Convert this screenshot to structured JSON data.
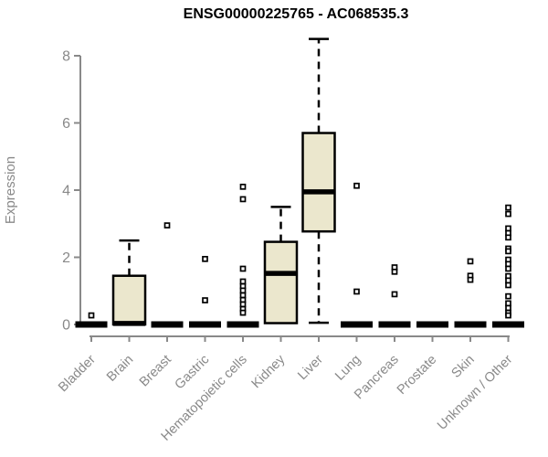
{
  "chart_data": {
    "type": "boxplot",
    "title": "ENSG00000225765 - AC068535.3",
    "ylabel": "Expression",
    "xlabel": "",
    "ylim": [
      0,
      8.6
    ],
    "yticks": [
      0,
      2,
      4,
      6,
      8
    ],
    "grid": false,
    "legend": "none",
    "categories": [
      "Bladder",
      "Brain",
      "Breast",
      "Gastric",
      "Hematopoietic cells",
      "Kidney",
      "Liver",
      "Lung",
      "Pancreas",
      "Prostate",
      "Skin",
      "Unknown / Other"
    ],
    "boxes": [
      {
        "label": "Bladder",
        "q1": 0,
        "median": 0,
        "q3": 0,
        "whisker_low": 0,
        "whisker_high": 0,
        "outliers": [
          0.27
        ]
      },
      {
        "label": "Brain",
        "q1": 0,
        "median": 0.03,
        "q3": 1.45,
        "whisker_low": 0,
        "whisker_high": 2.5,
        "outliers": []
      },
      {
        "label": "Breast",
        "q1": 0,
        "median": 0,
        "q3": 0,
        "whisker_low": 0,
        "whisker_high": 0,
        "outliers": [
          2.95
        ]
      },
      {
        "label": "Gastric",
        "q1": 0,
        "median": 0,
        "q3": 0,
        "whisker_low": 0,
        "whisker_high": 0,
        "outliers": [
          1.95,
          0.72
        ]
      },
      {
        "label": "Hematopoietic cells",
        "q1": 0,
        "median": 0,
        "q3": 0,
        "whisker_low": 0,
        "whisker_high": 0,
        "outliers": [
          4.1,
          3.73,
          1.66,
          1.28,
          1.14,
          1.01,
          0.87,
          0.73,
          0.6,
          0.46,
          0.35
        ]
      },
      {
        "label": "Kidney",
        "q1": 0.04,
        "median": 1.52,
        "q3": 2.46,
        "whisker_low": 0.04,
        "whisker_high": 3.5,
        "outliers": []
      },
      {
        "label": "Liver",
        "q1": 2.77,
        "median": 3.95,
        "q3": 5.7,
        "whisker_low": 0.05,
        "whisker_high": 8.5,
        "outliers": []
      },
      {
        "label": "Lung",
        "q1": 0,
        "median": 0,
        "q3": 0,
        "whisker_low": 0,
        "whisker_high": 0,
        "outliers": [
          4.13,
          0.98
        ]
      },
      {
        "label": "Pancreas",
        "q1": 0,
        "median": 0,
        "q3": 0,
        "whisker_low": 0,
        "whisker_high": 0,
        "outliers": [
          1.7,
          1.57,
          0.9
        ]
      },
      {
        "label": "Prostate",
        "q1": 0,
        "median": 0,
        "q3": 0,
        "whisker_low": 0,
        "whisker_high": 0,
        "outliers": []
      },
      {
        "label": "Skin",
        "q1": 0,
        "median": 0,
        "q3": 0,
        "whisker_low": 0,
        "whisker_high": 0,
        "outliers": [
          1.88,
          1.45,
          1.33
        ]
      },
      {
        "label": "Unknown / Other",
        "q1": 0,
        "median": 0,
        "q3": 0,
        "whisker_low": 0,
        "whisker_high": 0,
        "outliers": [
          3.48,
          3.29,
          2.86,
          2.72,
          2.59,
          2.26,
          2.18,
          1.93,
          1.8,
          1.66,
          1.44,
          1.31,
          1.17,
          0.84,
          0.63,
          0.49,
          0.35,
          0.27
        ]
      }
    ],
    "colors": {
      "box_fill": "#ebe7cd",
      "box_stroke": "#000000",
      "median": "#000000",
      "whisker": "#000000",
      "outlier_fill": "#ffffff",
      "outlier_stroke": "#000000",
      "axis": "#898989",
      "title": "#000000",
      "background": "#ffffff"
    }
  }
}
